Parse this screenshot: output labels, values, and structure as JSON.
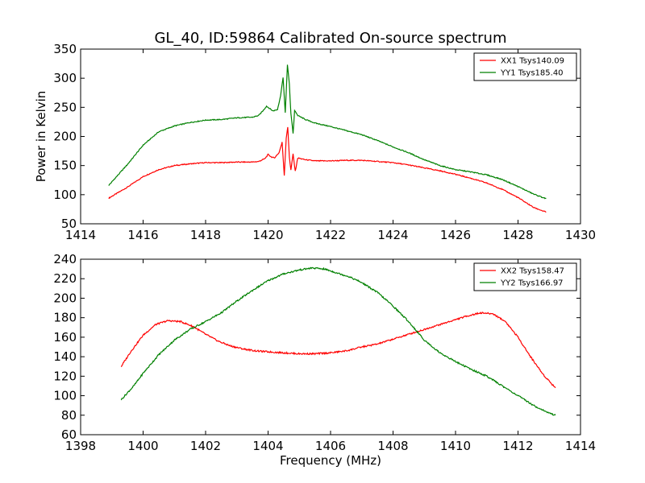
{
  "title": "GL_40, ID:59864 Calibrated On-source spectrum",
  "colors": {
    "red": "#ff0000",
    "green": "#008000"
  },
  "chart_data": [
    {
      "type": "line",
      "title": "GL_40, ID:59864 Calibrated On-source spectrum",
      "xlabel": "",
      "ylabel": "Power in Kelvin",
      "xlim": [
        1414,
        1430
      ],
      "ylim": [
        50,
        350
      ],
      "xticks": [
        1414,
        1416,
        1418,
        1420,
        1422,
        1424,
        1426,
        1428,
        1430
      ],
      "yticks": [
        50,
        100,
        150,
        200,
        250,
        300,
        350
      ],
      "grid": false,
      "legend_position": "top-right",
      "series": [
        {
          "name": "XX1 Tsys140.09",
          "color": "#ff0000",
          "x": [
            1414.9,
            1415.5,
            1416.0,
            1416.5,
            1417.0,
            1417.5,
            1418.0,
            1418.5,
            1419.0,
            1419.5,
            1419.7,
            1419.9,
            1420.0,
            1420.1,
            1420.2,
            1420.35,
            1420.45,
            1420.52,
            1420.58,
            1420.63,
            1420.68,
            1420.73,
            1420.8,
            1420.87,
            1420.95,
            1421.2,
            1421.5,
            1422.0,
            1422.5,
            1423.0,
            1423.5,
            1424.0,
            1424.5,
            1425.0,
            1425.5,
            1426.0,
            1426.5,
            1427.0,
            1427.5,
            1428.0,
            1428.5,
            1428.9
          ],
          "values": [
            94,
            113,
            131,
            143,
            150,
            153,
            155,
            155,
            156,
            156,
            157,
            162,
            169,
            165,
            163,
            172,
            190,
            133,
            197,
            216,
            165,
            142,
            170,
            140,
            163,
            160,
            158,
            158,
            159,
            159,
            157,
            155,
            151,
            146,
            141,
            135,
            128,
            120,
            109,
            95,
            78,
            70
          ]
        },
        {
          "name": "YY1 Tsys185.40",
          "color": "#008000",
          "x": [
            1414.9,
            1415.5,
            1416.0,
            1416.5,
            1417.0,
            1417.5,
            1418.0,
            1418.5,
            1419.0,
            1419.5,
            1419.7,
            1419.85,
            1419.95,
            1420.05,
            1420.15,
            1420.3,
            1420.4,
            1420.48,
            1420.55,
            1420.62,
            1420.68,
            1420.73,
            1420.8,
            1420.85,
            1420.95,
            1421.2,
            1421.5,
            1422.0,
            1422.5,
            1423.0,
            1423.5,
            1424.0,
            1424.5,
            1425.0,
            1425.5,
            1426.0,
            1426.5,
            1427.0,
            1427.5,
            1428.0,
            1428.5,
            1428.9
          ],
          "values": [
            116,
            152,
            185,
            208,
            218,
            224,
            228,
            229,
            232,
            233,
            236,
            245,
            252,
            248,
            244,
            246,
            270,
            302,
            240,
            323,
            290,
            240,
            205,
            245,
            236,
            229,
            223,
            217,
            210,
            203,
            193,
            182,
            172,
            160,
            150,
            143,
            139,
            134,
            126,
            114,
            101,
            93
          ]
        }
      ]
    },
    {
      "type": "line",
      "title": "",
      "xlabel": "Frequency (MHz)",
      "ylabel": "",
      "xlim": [
        1398,
        1414
      ],
      "ylim": [
        60,
        240
      ],
      "xticks": [
        1398,
        1400,
        1402,
        1404,
        1406,
        1408,
        1410,
        1412,
        1414
      ],
      "yticks": [
        60,
        80,
        100,
        120,
        140,
        160,
        180,
        200,
        220,
        240
      ],
      "grid": false,
      "legend_position": "top-right",
      "series": [
        {
          "name": "XX2 Tsys158.47",
          "color": "#ff0000",
          "x": [
            1399.3,
            1399.6,
            1400.0,
            1400.4,
            1400.8,
            1401.2,
            1401.6,
            1402.0,
            1402.4,
            1402.8,
            1403.2,
            1403.6,
            1404.0,
            1404.5,
            1405.0,
            1405.5,
            1406.0,
            1406.5,
            1407.0,
            1407.5,
            1408.0,
            1408.5,
            1409.0,
            1409.5,
            1410.0,
            1410.4,
            1410.8,
            1411.2,
            1411.6,
            1412.0,
            1412.4,
            1412.8,
            1413.2
          ],
          "values": [
            130,
            145,
            162,
            173,
            177,
            176,
            171,
            163,
            156,
            151,
            148,
            146,
            145,
            144,
            143,
            143,
            144,
            146,
            150,
            153,
            158,
            163,
            168,
            173,
            178,
            182,
            185,
            184,
            176,
            160,
            140,
            122,
            108
          ]
        },
        {
          "name": "YY2 Tsys166.97",
          "color": "#008000",
          "x": [
            1399.3,
            1399.7,
            1400.0,
            1400.5,
            1401.0,
            1401.5,
            1402.0,
            1402.5,
            1403.0,
            1403.5,
            1404.0,
            1404.5,
            1405.0,
            1405.4,
            1405.8,
            1406.2,
            1406.6,
            1407.0,
            1407.5,
            1408.0,
            1408.5,
            1409.0,
            1409.5,
            1410.0,
            1410.5,
            1411.0,
            1411.5,
            1412.0,
            1412.5,
            1413.0,
            1413.2
          ],
          "values": [
            96,
            110,
            123,
            142,
            157,
            168,
            176,
            185,
            197,
            208,
            218,
            225,
            229,
            231,
            230,
            226,
            222,
            216,
            206,
            192,
            176,
            157,
            144,
            135,
            127,
            120,
            110,
            100,
            90,
            82,
            80
          ]
        }
      ]
    }
  ]
}
